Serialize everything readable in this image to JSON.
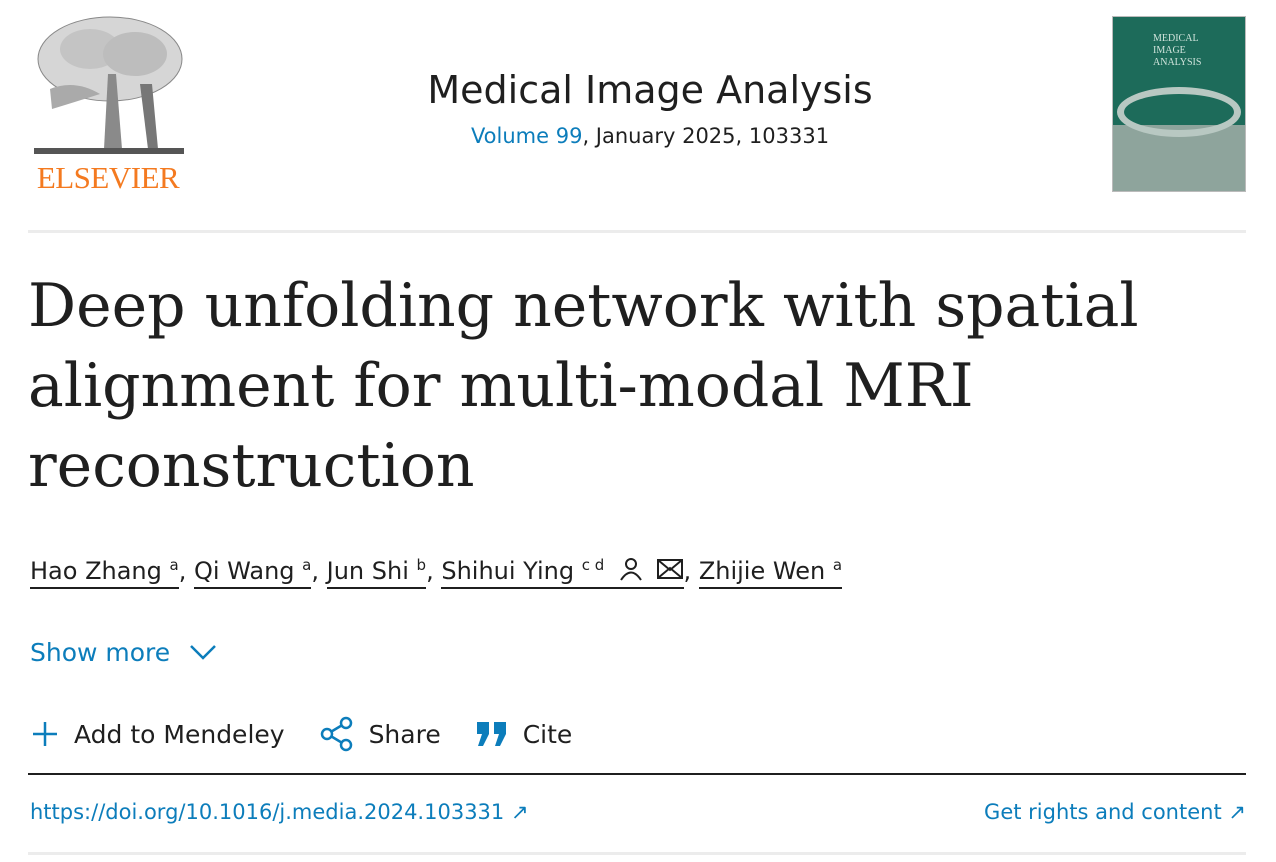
{
  "publisher": {
    "logo_text": "ELSEVIER",
    "brand_color": "#f47a20"
  },
  "journal": {
    "title": "Medical Image Analysis",
    "volume_link": "Volume 99",
    "issue_info": ", January 2025, 103331",
    "cover_text": "MEDICAL IMAGE ANALYSIS"
  },
  "article": {
    "title": "Deep unfolding network with spatial alignment for multi-modal MRI reconstruction",
    "authors": [
      {
        "name": "Hao Zhang",
        "aff": "a"
      },
      {
        "name": "Qi Wang",
        "aff": "a"
      },
      {
        "name": "Jun Shi",
        "aff": "b"
      },
      {
        "name": "Shihui Ying",
        "aff": "c d",
        "icons": [
          "person-icon",
          "envelope-icon"
        ]
      },
      {
        "name": "Zhijie Wen",
        "aff": "a"
      }
    ],
    "show_more": "Show more"
  },
  "actions": {
    "mendeley": "Add to Mendeley",
    "share": "Share",
    "cite": "Cite"
  },
  "links": {
    "doi": "https://doi.org/10.1016/j.media.2024.103331",
    "rights": "Get rights and content"
  },
  "colors": {
    "link": "#0c7dbb",
    "text": "#1f1f1f"
  }
}
